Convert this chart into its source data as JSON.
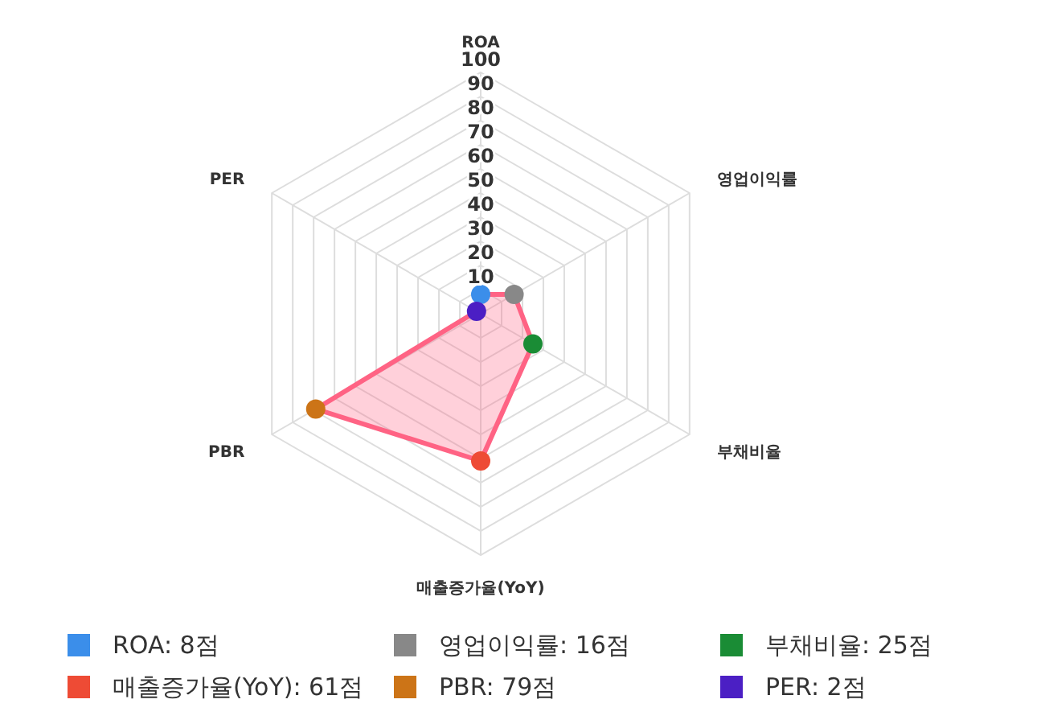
{
  "chart_data": {
    "type": "radar",
    "categories": [
      "ROA",
      "영업이익률",
      "부채비율",
      "매출증가율(YoY)",
      "PBR",
      "PER"
    ],
    "series": [
      {
        "color": "#ff6384",
        "values": [
          8,
          16,
          25,
          61,
          79,
          2
        ]
      }
    ],
    "colors": [
      "#3b8eea",
      "#888888",
      "#1a8c35",
      "#ee4b35",
      "#cc7417",
      "#4b1fc4"
    ],
    "value_labels": [
      "ROA: 8점",
      "영업이익률: 16점",
      "부채비율: 25점",
      "매출증가율(YoY): 61점",
      "PBR: 79점",
      "PER: 2점"
    ],
    "ylim": [
      0,
      100
    ],
    "yticks": [
      10,
      20,
      30,
      40,
      50,
      60,
      70,
      80,
      90,
      100
    ],
    "marker": "circle"
  }
}
